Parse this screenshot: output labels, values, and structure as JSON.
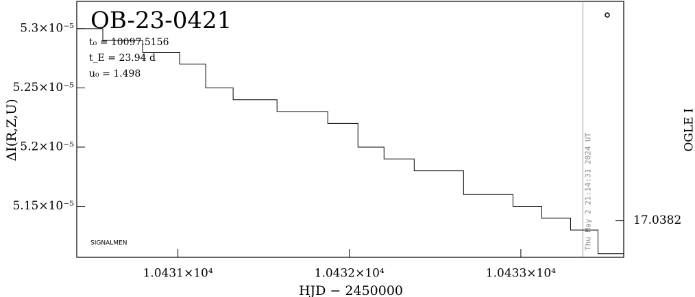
{
  "chart_data": {
    "type": "line",
    "step": "post",
    "title": "OB-23-0421",
    "params": [
      "t₀ = 10097.5156",
      "t_E = 23.94 d",
      "u₀ = 1.498"
    ],
    "footnote": "SIGNALMEN",
    "xlabel": "HJD − 2450000",
    "ylabel": "ΔI(R,Z,U)",
    "y2label": "OGLE I",
    "timestamp": {
      "x": 10433.362,
      "label": "Thu May  2 21:14:31 2024 UT"
    },
    "x": [
      10430.41,
      10430.562,
      10430.794,
      10431.01,
      10431.162,
      10431.322,
      10431.578,
      10431.874,
      10432.05,
      10432.202,
      10432.378,
      10432.666,
      10432.954,
      10433.122,
      10433.29,
      10433.45
    ],
    "series": [
      {
        "name": "OGLE I",
        "color": "#000000",
        "values": [
          5.3e-05,
          5.29e-05,
          5.28e-05,
          5.27e-05,
          5.25e-05,
          5.24e-05,
          5.23e-05,
          5.22e-05,
          5.2e-05,
          5.19e-05,
          5.18e-05,
          5.16e-05,
          5.15e-05,
          5.14e-05,
          5.13e-05,
          5.11e-05
        ]
      }
    ],
    "xlim": [
      10430.41,
      10433.6
    ],
    "xticks": [
      {
        "value": 10431,
        "label": "1.0431×10⁴"
      },
      {
        "value": 10432,
        "label": "1.0432×10⁴"
      },
      {
        "value": 10433,
        "label": "1.0433×10⁴"
      }
    ],
    "ylim": [
      5.107e-05,
      5.323e-05
    ],
    "yticks": [
      {
        "value": 5.15e-05,
        "label": "5.15×10⁻⁵"
      },
      {
        "value": 5.2e-05,
        "label": "5.2×10⁻⁵"
      },
      {
        "value": 5.25e-05,
        "label": "5.25×10⁻⁵"
      },
      {
        "value": 5.3e-05,
        "label": "5.3×10⁻⁵"
      }
    ],
    "y2lim": [
      17.0385,
      17.0364
    ],
    "y2ticks": [
      17.0382
    ]
  }
}
